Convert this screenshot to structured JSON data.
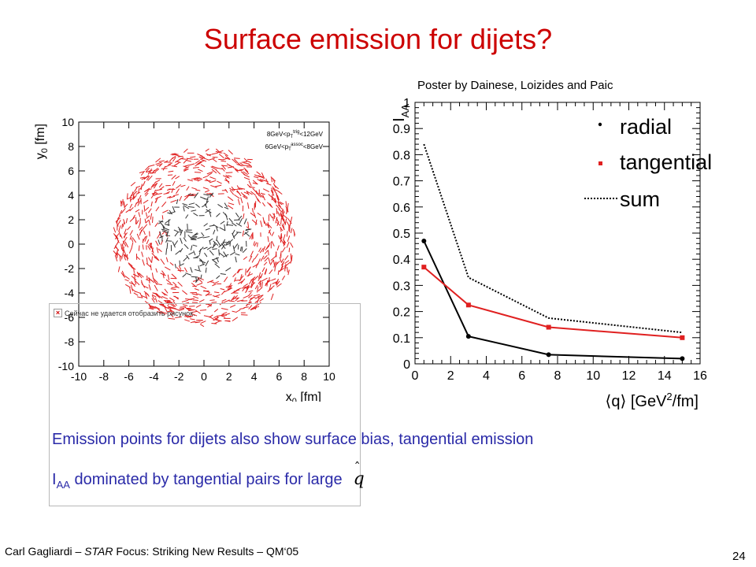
{
  "slide": {
    "title": "Surface emission for dijets?",
    "poster_credit": "Poster by Dainese, Loizides and Paic",
    "broken_image_text": "Сейчас не удается отобразить рисунок.",
    "note_1": "Emission points for dijets also show surface bias, tangential emission",
    "note_2_main": "I",
    "note_2_sub": "AA",
    "note_2_rest": " dominated by tangential pairs for large",
    "note_2_symbol": "q",
    "footer_author": "Carl Gagliardi – ",
    "footer_star": "STAR",
    "footer_rest": " Focus: Striking New Results – QM‘05",
    "page_number": "24"
  },
  "chart_data": [
    {
      "type": "scatter",
      "title": "",
      "xlabel": "x0 [fm]",
      "ylabel": "y0 [fm]",
      "xlim": [
        -10,
        10
      ],
      "ylim": [
        -10,
        10
      ],
      "x_ticks": [
        "-10",
        "-8",
        "-6",
        "-4",
        "-2",
        "0",
        "2",
        "4",
        "6",
        "8",
        "10"
      ],
      "y_ticks": [
        "-10",
        "-8",
        "-6",
        "-4",
        "-2",
        "0",
        "2",
        "4",
        "6",
        "8",
        "10"
      ],
      "legend_placement": "top-right",
      "legend_lines": [
        "8GeV<p_T^trig<12GeV",
        "6GeV<p_T^assoc<8GeV"
      ],
      "series": [
        {
          "description": "emission points in outer ring",
          "color": "#e02020",
          "r_range": [
            3,
            7.2
          ],
          "count": 900
        },
        {
          "description": "emission points in inner region",
          "color": "#333333",
          "r_range": [
            0,
            3.6
          ],
          "count": 180
        }
      ]
    },
    {
      "type": "line",
      "title": "",
      "xlabel": "⟨q⟩ [GeV²/fm]",
      "ylabel": "I_AA",
      "xlim": [
        0,
        16
      ],
      "ylim": [
        0,
        1
      ],
      "x_ticks": [
        "0",
        "2",
        "4",
        "6",
        "8",
        "10",
        "12",
        "14",
        "16"
      ],
      "y_ticks": [
        "0",
        "0.1",
        "0.2",
        "0.3",
        "0.4",
        "0.5",
        "0.6",
        "0.7",
        "0.8",
        "0.9",
        "1"
      ],
      "legend_placement": "top-right",
      "series": [
        {
          "name": "radial",
          "color": "#000000",
          "style": "solid",
          "marker": "circle",
          "x": [
            0.5,
            3,
            7.5,
            15
          ],
          "y": [
            0.47,
            0.105,
            0.035,
            0.02
          ]
        },
        {
          "name": "tangential",
          "color": "#e02020",
          "style": "solid",
          "marker": "square",
          "x": [
            0.5,
            3,
            7.5,
            15
          ],
          "y": [
            0.37,
            0.225,
            0.14,
            0.1
          ]
        },
        {
          "name": "sum",
          "color": "#000000",
          "style": "dotted",
          "marker": "none",
          "x": [
            0.5,
            3,
            7.5,
            15
          ],
          "y": [
            0.84,
            0.33,
            0.175,
            0.12
          ]
        }
      ]
    }
  ],
  "colors": {
    "title": "#cc0000",
    "note_text": "#2a2aa8",
    "red_series": "#e02020",
    "black_series": "#000000"
  }
}
